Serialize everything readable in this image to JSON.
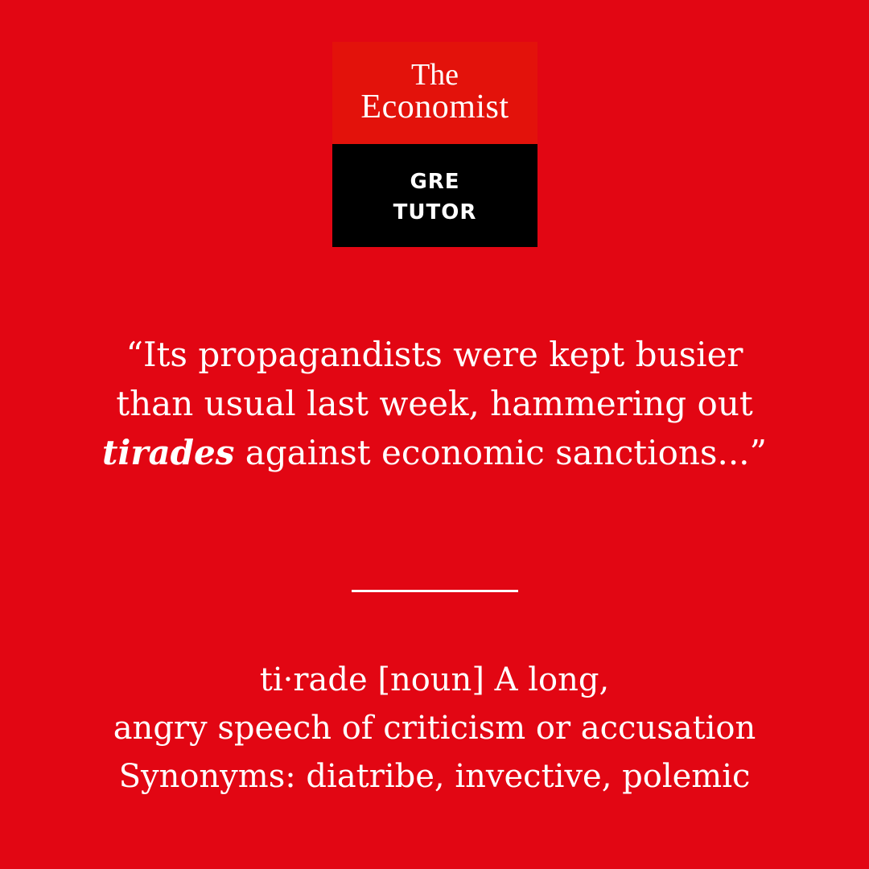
{
  "colors": {
    "background": "#e20613",
    "logo_red": "#e3120b",
    "logo_black": "#000000",
    "text": "#ffffff"
  },
  "logo": {
    "line1": "The",
    "line2": "Economist",
    "sub_line1": "GRE",
    "sub_line2": "TUTOR"
  },
  "quote": {
    "before": "“Its propagandists were kept busier than usual last week, hammering out ",
    "highlight": "tirades",
    "after": " against economic sanctions...”"
  },
  "definition": {
    "line1": "ti·rade [noun] A long,",
    "line2": "angry speech of criticism or accusation",
    "line3": "Synonyms: diatribe, invective, polemic"
  }
}
